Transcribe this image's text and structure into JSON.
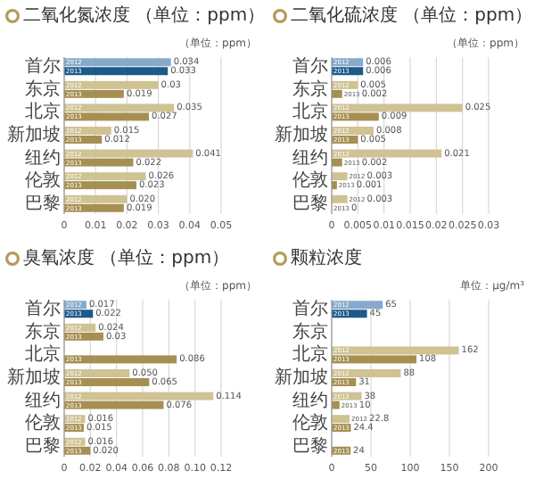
{
  "chart_data": [
    {
      "type": "bar",
      "orientation": "horizontal",
      "title": "二氧化氮浓度 （单位：ppm）",
      "annotations": [
        "（单位：ppm）"
      ],
      "categories": [
        "首尔",
        "东京",
        "北京",
        "新加坡",
        "纽约",
        "伦敦",
        "巴黎"
      ],
      "xlim": [
        0,
        0.05
      ],
      "xticks": [
        0,
        0.01,
        0.02,
        0.03,
        0.04,
        0.05
      ],
      "grid": "x",
      "series": [
        {
          "name": "2012",
          "colors": [
            "#86a9cc",
            "#cfc293",
            "#cfc293",
            "#cfc293",
            "#cfc293",
            "#cfc293",
            "#cfc293"
          ],
          "values": [
            0.034,
            0.03,
            0.035,
            0.015,
            0.041,
            0.026,
            0.02
          ],
          "value_labels": [
            "0.034",
            "0.03",
            "0.035",
            "0.015",
            "0.041",
            "0.026",
            "0.020"
          ]
        },
        {
          "name": "2013",
          "colors": [
            "#1d5a8a",
            "#a68f52",
            "#a68f52",
            "#a68f52",
            "#a68f52",
            "#a68f52",
            "#a68f52"
          ],
          "values": [
            0.033,
            0.019,
            0.027,
            0.012,
            0.022,
            0.023,
            0.019
          ],
          "value_labels": [
            "0.033",
            "0.019",
            "0.027",
            "0.012",
            "0.022",
            "0.023",
            "0.019"
          ]
        }
      ]
    },
    {
      "type": "bar",
      "orientation": "horizontal",
      "title": "二氧化硫浓度 （单位：ppm）",
      "annotations": [
        "（单位：ppm）"
      ],
      "categories": [
        "首尔",
        "东京",
        "北京",
        "新加坡",
        "纽约",
        "伦敦",
        "巴黎"
      ],
      "xlim": [
        0,
        0.03
      ],
      "xticks": [
        0,
        0.005,
        0.01,
        0.015,
        0.02,
        0.025,
        0.03
      ],
      "grid": "x",
      "series": [
        {
          "name": "2012",
          "colors": [
            "#86a9cc",
            "#cfc293",
            "#cfc293",
            "#cfc293",
            "#cfc293",
            "#cfc293",
            "#cfc293"
          ],
          "values": [
            0.006,
            0.005,
            0.025,
            0.008,
            0.021,
            0.003,
            0.003
          ],
          "value_labels": [
            "0.006",
            "0.005",
            "0.025",
            "0.008",
            "0.021",
            "0.003",
            "0.003"
          ]
        },
        {
          "name": "2013",
          "colors": [
            "#1d5a8a",
            "#a68f52",
            "#a68f52",
            "#a68f52",
            "#a68f52",
            "#a68f52",
            "#a68f52"
          ],
          "values": [
            0.006,
            0.002,
            0.009,
            0.005,
            0.002,
            0.001,
            0
          ],
          "value_labels": [
            "0.006",
            "0.002",
            "0.009",
            "0.005",
            "0.002",
            "0.001",
            "0"
          ]
        }
      ]
    },
    {
      "type": "bar",
      "orientation": "horizontal",
      "title": "臭氧浓度 （单位：ppm）",
      "annotations": [
        "（单位：ppm）"
      ],
      "categories": [
        "首尔",
        "东京",
        "北京",
        "新加坡",
        "纽约",
        "伦敦",
        "巴黎"
      ],
      "xlim": [
        0,
        0.12
      ],
      "xticks": [
        0,
        0.02,
        0.04,
        0.06,
        0.08,
        {
          "value": 0.1,
          "label": "0.10"
        },
        0.12
      ],
      "grid": "x",
      "series": [
        {
          "name": "2012",
          "colors": [
            "#86a9cc",
            "#cfc293",
            null,
            "#cfc293",
            "#cfc293",
            "#cfc293",
            "#cfc293"
          ],
          "values": [
            0.017,
            0.024,
            null,
            0.05,
            0.114,
            0.016,
            0.016
          ],
          "value_labels": [
            "0.017",
            "0.024",
            null,
            "0.050",
            "0.114",
            "0.016",
            "0.016"
          ]
        },
        {
          "name": "2013",
          "colors": [
            "#1d5a8a",
            "#a68f52",
            "#a68f52",
            "#a68f52",
            "#a68f52",
            "#a68f52",
            "#a68f52"
          ],
          "values": [
            0.022,
            0.03,
            0.086,
            0.065,
            0.076,
            0.015,
            0.02
          ],
          "value_labels": [
            "0.022",
            "0.03",
            "0.086",
            "0.065",
            "0.076",
            "0.015",
            "0.020"
          ]
        }
      ]
    },
    {
      "type": "bar",
      "orientation": "horizontal",
      "title": "颗粒浓度",
      "annotations": [
        "单位：μg/m³"
      ],
      "categories": [
        "首尔",
        "东京",
        "北京",
        "新加坡",
        "纽约",
        "伦敦",
        "巴黎"
      ],
      "xlim": [
        0,
        200
      ],
      "xticks": [
        0,
        50,
        100,
        150,
        200
      ],
      "grid": "x",
      "series": [
        {
          "name": "2012",
          "colors": [
            "#86a9cc",
            null,
            "#cfc293",
            "#cfc293",
            "#cfc293",
            "#cfc293",
            null
          ],
          "values": [
            65,
            null,
            162,
            88,
            38,
            22.8,
            null
          ],
          "value_labels": [
            "65",
            null,
            "162",
            "88",
            "38",
            "22.8",
            null
          ]
        },
        {
          "name": "2013",
          "colors": [
            "#1d5a8a",
            null,
            "#a68f52",
            "#a68f52",
            "#a68f52",
            "#a68f52",
            "#a68f52"
          ],
          "values": [
            45,
            null,
            108,
            31,
            10,
            24.4,
            24
          ],
          "value_labels": [
            "45",
            null,
            "108",
            "31",
            "10",
            "24.4",
            "24"
          ]
        }
      ]
    }
  ]
}
